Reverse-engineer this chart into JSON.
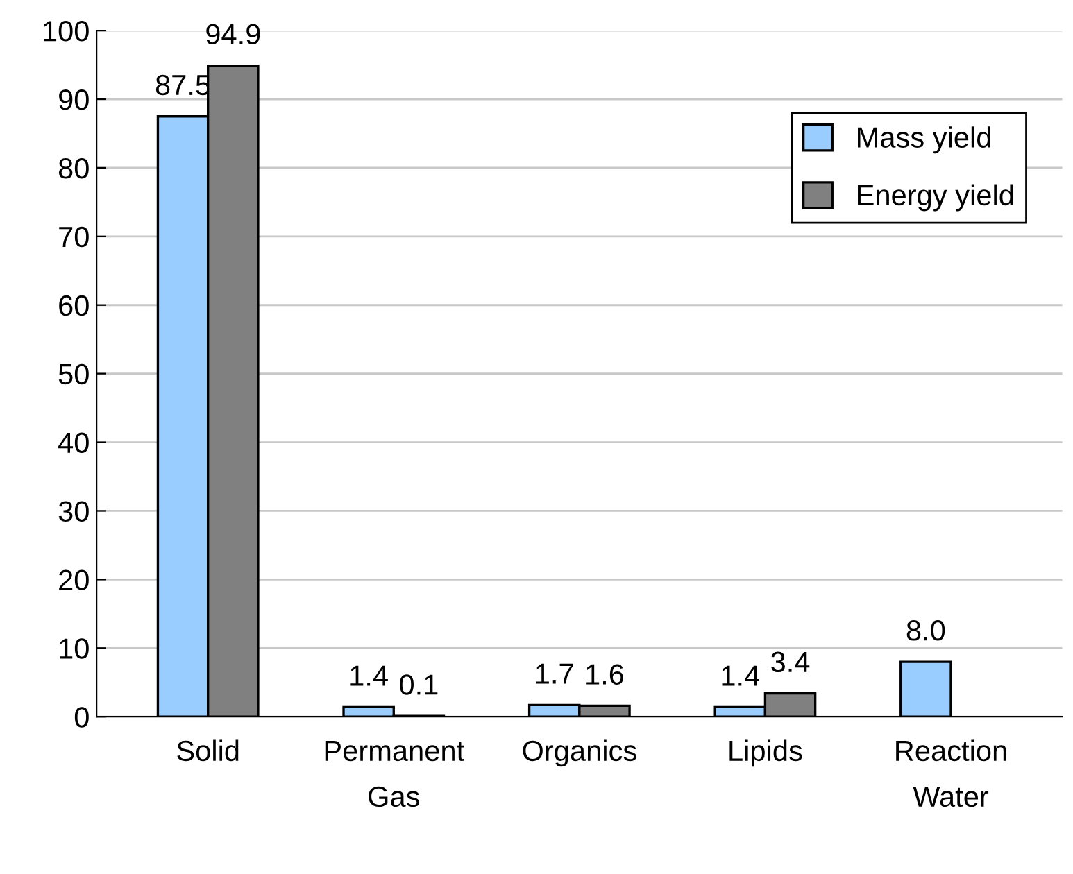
{
  "chart_data": {
    "type": "bar",
    "categories": [
      "Solid",
      "Permanent\nGas",
      "Organics",
      "Lipids",
      "Reaction\nWater"
    ],
    "series": [
      {
        "name": "Mass yield",
        "color": "#99ccff",
        "values": [
          87.5,
          1.4,
          1.7,
          1.4,
          8.0
        ],
        "value_labels": [
          "87.5",
          "1.4",
          "1.7",
          "1.4",
          "8.0"
        ]
      },
      {
        "name": "Energy yield",
        "color": "#808080",
        "values": [
          94.9,
          0.1,
          1.6,
          3.4,
          null
        ],
        "value_labels": [
          "94.9",
          "0.1",
          "1.6",
          "3.4",
          null
        ]
      }
    ],
    "ylim": [
      0,
      100
    ],
    "yticks": [
      0,
      10,
      20,
      30,
      40,
      50,
      60,
      70,
      80,
      90,
      100
    ],
    "grid": "y",
    "legend": "top right"
  }
}
